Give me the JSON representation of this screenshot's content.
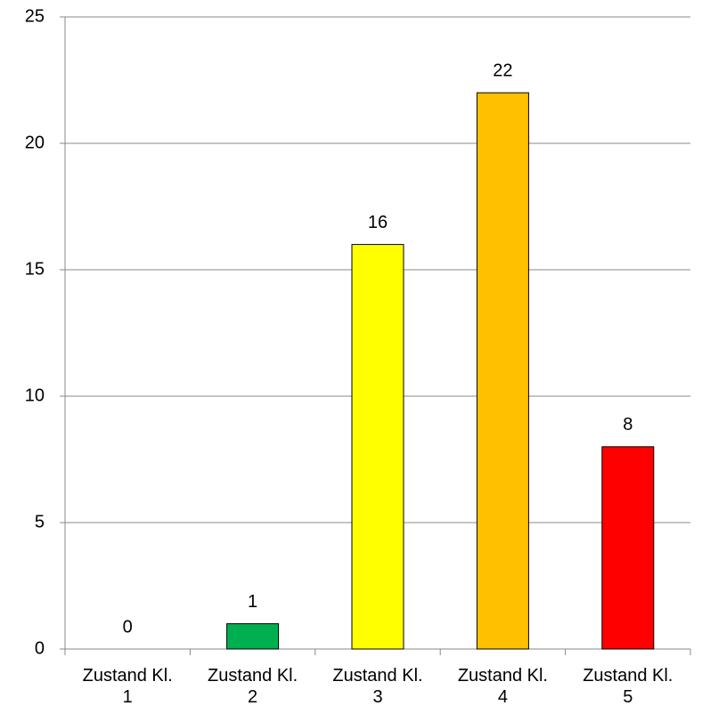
{
  "chart_data": {
    "type": "bar",
    "categories": [
      "Zustand Kl. 1",
      "Zustand Kl. 2",
      "Zustand Kl. 3",
      "Zustand Kl. 4",
      "Zustand Kl. 5"
    ],
    "values": [
      0,
      1,
      16,
      22,
      8
    ],
    "colors": [
      "#00b050",
      "#00b050",
      "#ffff00",
      "#ffc000",
      "#ff0000"
    ],
    "ylim": [
      0,
      25
    ],
    "yticks": [
      0,
      5,
      10,
      15,
      20,
      25
    ],
    "grid": true
  }
}
